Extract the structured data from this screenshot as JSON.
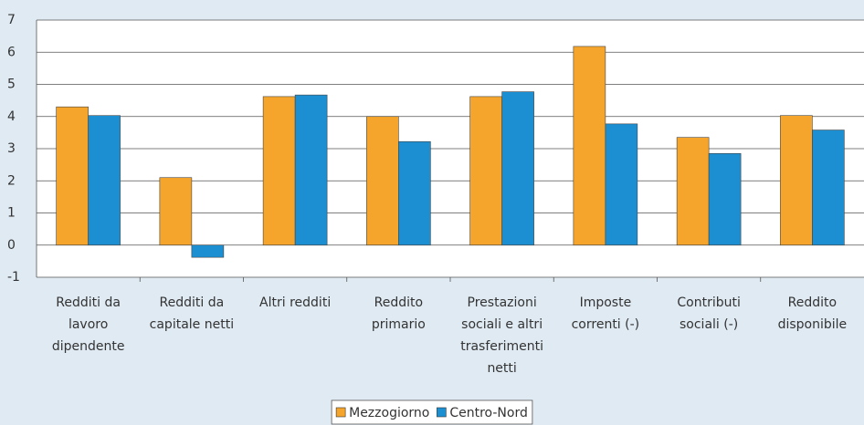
{
  "chart_data": {
    "type": "bar",
    "categories": [
      "Redditi da lavoro dipendente",
      "Redditi da capitale netti",
      "Altri redditi",
      "Reddito primario",
      "Prestazioni sociali e altri trasferimenti netti",
      "Imposte correnti (-)",
      "Contributi sociali (-)",
      "Reddito disponibile"
    ],
    "series": [
      {
        "name": "Mezzogiorno",
        "color": "#f5a52b",
        "values": [
          4.3,
          2.1,
          4.62,
          4.0,
          4.62,
          6.18,
          3.35,
          4.03
        ]
      },
      {
        "name": "Centro-Nord",
        "color": "#1b8fd2",
        "values": [
          4.03,
          -0.38,
          4.67,
          3.22,
          4.77,
          3.77,
          2.85,
          3.58
        ]
      }
    ],
    "ylim": [
      -1,
      7
    ],
    "yticks": [
      -1,
      0,
      1,
      2,
      3,
      4,
      5,
      6,
      7
    ],
    "grid": true,
    "legend": "bottom"
  }
}
